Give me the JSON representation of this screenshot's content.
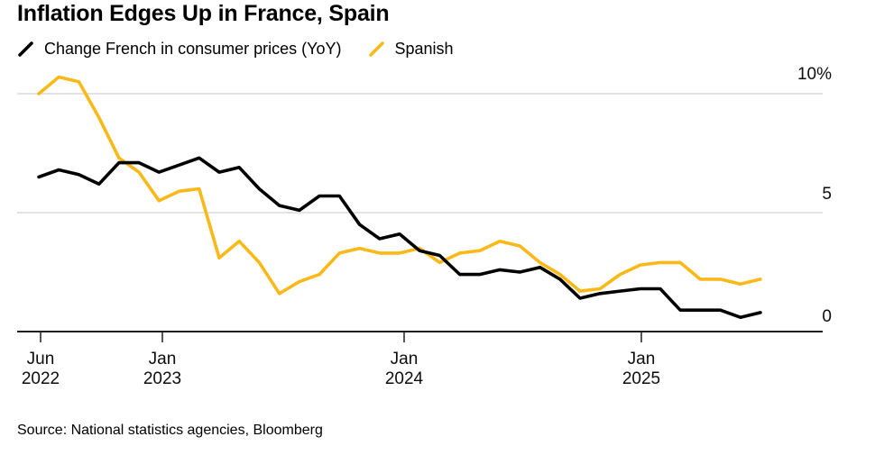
{
  "chart_data": {
    "type": "line",
    "title": "Inflation Edges Up in France, Spain",
    "xlabel": "",
    "ylabel": "",
    "ylim": [
      0,
      11
    ],
    "grid": "horizontal",
    "legend_position": "top-left",
    "x": [
      "Jun 2022",
      "Jul 2022",
      "Aug 2022",
      "Sep 2022",
      "Oct 2022",
      "Nov 2022",
      "Dec 2022",
      "Jan 2023",
      "Feb 2023",
      "Mar 2023",
      "Apr 2023",
      "May 2023",
      "Jun 2023",
      "Jul 2023",
      "Aug 2023",
      "Sep 2023",
      "Oct 2023",
      "Nov 2023",
      "Dec 2023",
      "Jan 2024",
      "Feb 2024",
      "Mar 2024",
      "Apr 2024",
      "May 2024",
      "Jun 2024",
      "Jul 2024",
      "Aug 2024",
      "Sep 2024",
      "Oct 2024",
      "Nov 2024",
      "Dec 2024",
      "Jan 2025",
      "Feb 2025",
      "Mar 2025",
      "Apr 2025",
      "May 2025",
      "Jun 2025"
    ],
    "series": [
      {
        "id": "french",
        "name": "Change French in consumer prices (YoY)",
        "color": "#000000",
        "values": [
          6.5,
          6.8,
          6.6,
          6.2,
          7.1,
          7.1,
          6.7,
          7.0,
          7.3,
          6.7,
          6.9,
          6.0,
          5.3,
          5.1,
          5.7,
          5.7,
          4.5,
          3.9,
          4.1,
          3.4,
          3.2,
          2.4,
          2.4,
          2.6,
          2.5,
          2.7,
          2.2,
          1.4,
          1.6,
          1.7,
          1.8,
          1.8,
          0.9,
          0.9,
          0.9,
          0.6,
          0.8
        ]
      },
      {
        "id": "spanish",
        "name": "Spanish",
        "color": "#FAB919",
        "values": [
          10.0,
          10.7,
          10.5,
          9.0,
          7.3,
          6.7,
          5.5,
          5.9,
          6.0,
          3.1,
          3.8,
          2.9,
          1.6,
          2.1,
          2.4,
          3.3,
          3.5,
          3.3,
          3.3,
          3.5,
          2.9,
          3.3,
          3.4,
          3.8,
          3.6,
          2.9,
          2.4,
          1.7,
          1.8,
          2.4,
          2.8,
          2.9,
          2.9,
          2.2,
          2.2,
          2.0,
          2.2
        ]
      }
    ],
    "yticks": [
      {
        "label": "10%",
        "value": 10
      },
      {
        "label": "5",
        "value": 5
      },
      {
        "label": "0",
        "value": 0
      }
    ],
    "xticks": [
      {
        "line1": "Jun",
        "line2": "2022"
      },
      {
        "line1": "Jan",
        "line2": "2023"
      },
      {
        "line1": "Jan",
        "line2": "2024"
      },
      {
        "line1": "Jan",
        "line2": "2025"
      }
    ]
  },
  "source": {
    "text": "Source: National statistics agencies, Bloomberg"
  }
}
